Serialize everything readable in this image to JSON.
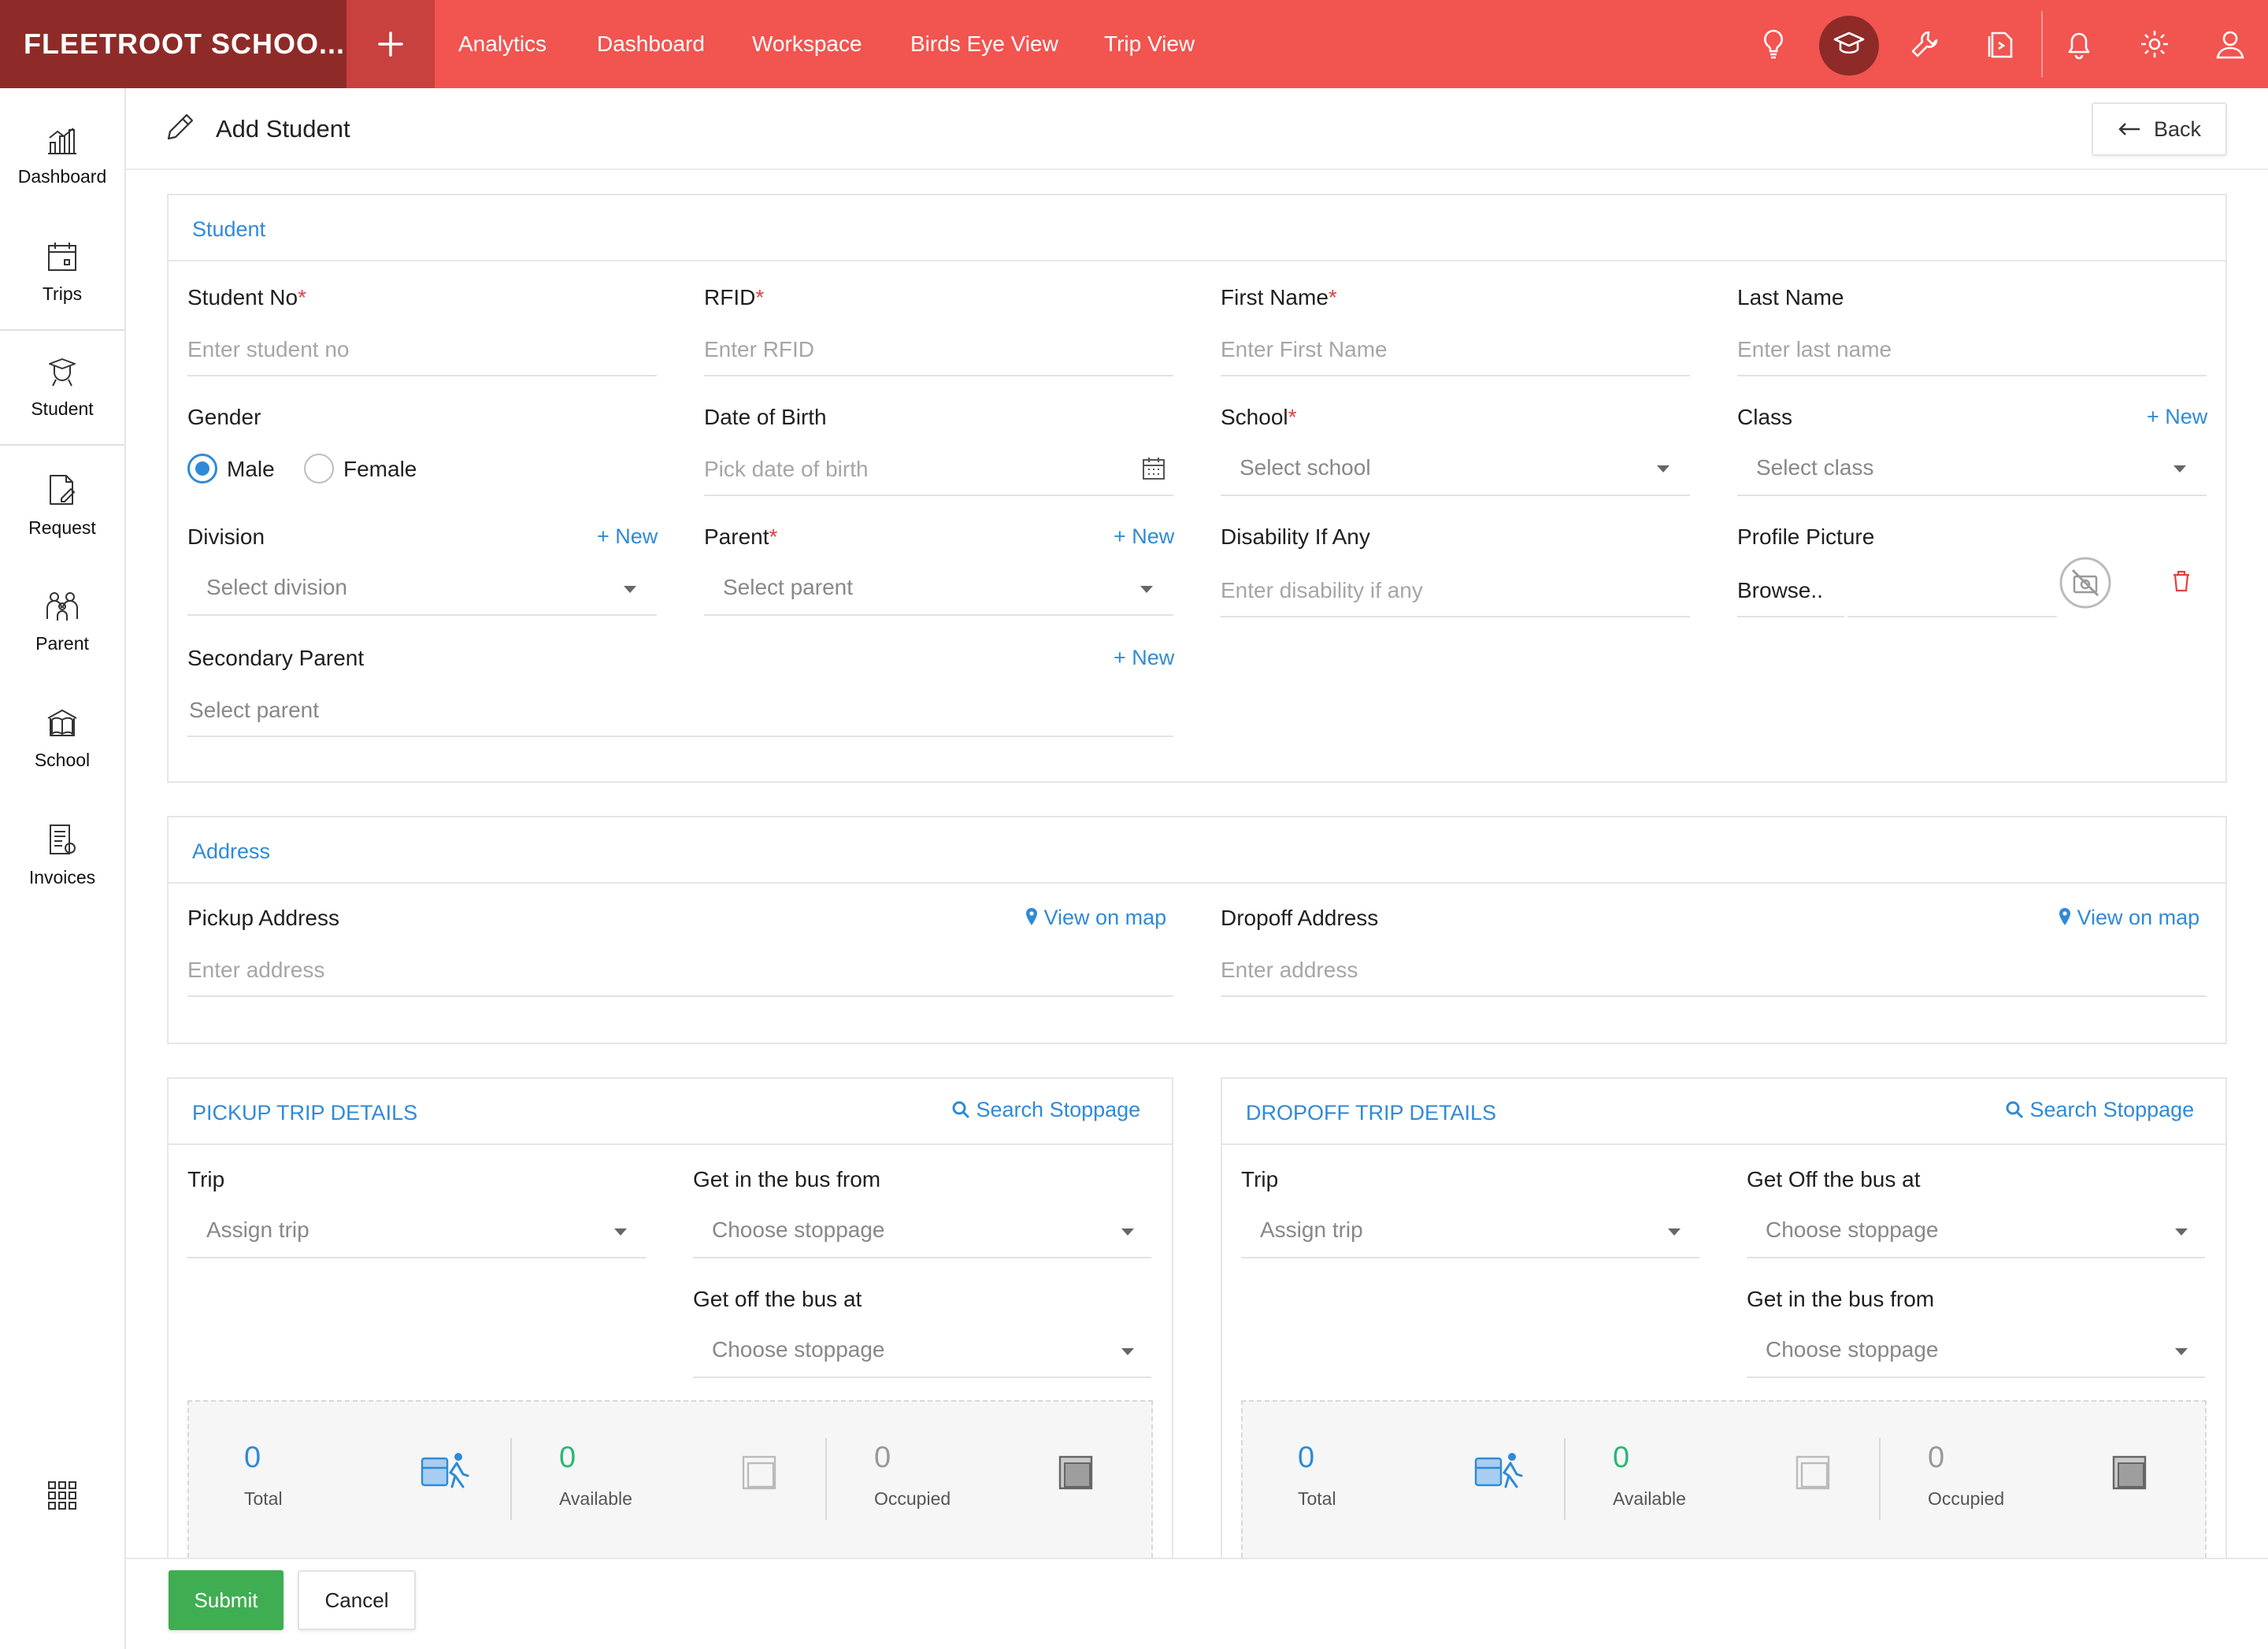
{
  "app": {
    "brand": "FLEETROOT SCHOO..."
  },
  "topnav": {
    "items": [
      "Analytics",
      "Dashboard",
      "Workspace",
      "Birds Eye View",
      "Trip View"
    ]
  },
  "top_icons": [
    "bulb-icon",
    "graduation-cap-icon",
    "wrench-icon",
    "documents-icon",
    "bell-icon",
    "gear-icon",
    "user-icon"
  ],
  "sidebar": {
    "items": [
      {
        "label": "Dashboard",
        "icon": "chart-icon"
      },
      {
        "label": "Trips",
        "icon": "calendar-icon"
      },
      {
        "label": "Student",
        "icon": "student-icon"
      },
      {
        "label": "Request",
        "icon": "request-icon"
      },
      {
        "label": "Parent",
        "icon": "parent-icon"
      },
      {
        "label": "School",
        "icon": "school-icon"
      },
      {
        "label": "Invoices",
        "icon": "invoice-icon"
      }
    ],
    "active": "Student"
  },
  "header": {
    "title": "Add Student",
    "back_label": "Back"
  },
  "student": {
    "section_title": "Student",
    "student_no": {
      "label": "Student No",
      "placeholder": "Enter student no"
    },
    "rfid": {
      "label": "RFID",
      "placeholder": "Enter RFID"
    },
    "first_name": {
      "label": "First Name",
      "placeholder": "Enter First Name"
    },
    "last_name": {
      "label": "Last Name",
      "placeholder": "Enter last name"
    },
    "gender": {
      "label": "Gender",
      "options": [
        "Male",
        "Female"
      ],
      "selected": "Male"
    },
    "dob": {
      "label": "Date of Birth",
      "placeholder": "Pick date of birth"
    },
    "school": {
      "label": "School",
      "placeholder": "Select school"
    },
    "class": {
      "label": "Class",
      "placeholder": "Select class",
      "new_label": "+ New"
    },
    "division": {
      "label": "Division",
      "placeholder": "Select division",
      "new_label": "+ New"
    },
    "parent": {
      "label": "Parent",
      "placeholder": "Select parent",
      "new_label": "+ New"
    },
    "disability": {
      "label": "Disability If Any",
      "placeholder": "Enter disability if any"
    },
    "profile_picture": {
      "label": "Profile Picture",
      "browse_label": "Browse.."
    },
    "secondary_parent": {
      "label": "Secondary Parent",
      "placeholder": "Select parent",
      "new_label": "+ New"
    },
    "required_mark": "*"
  },
  "address": {
    "section_title": "Address",
    "pickup": {
      "label": "Pickup Address",
      "placeholder": "Enter address",
      "map_label": "View on map"
    },
    "dropoff": {
      "label": "Dropoff Address",
      "placeholder": "Enter address",
      "map_label": "View on map"
    }
  },
  "pickup_trip": {
    "section_title": "PICKUP TRIP DETAILS",
    "search_label": "Search Stoppage",
    "trip": {
      "label": "Trip",
      "placeholder": "Assign trip"
    },
    "get_in": {
      "label": "Get in the bus from",
      "placeholder": "Choose stoppage"
    },
    "get_off": {
      "label": "Get off the bus at",
      "placeholder": "Choose stoppage"
    },
    "stats": {
      "total": "0",
      "total_label": "Total",
      "available": "0",
      "available_label": "Available",
      "occupied": "0",
      "occupied_label": "Occupied"
    }
  },
  "dropoff_trip": {
    "section_title": "DROPOFF TRIP DETAILS",
    "search_label": "Search Stoppage",
    "trip": {
      "label": "Trip",
      "placeholder": "Assign trip"
    },
    "get_off": {
      "label": "Get Off the bus at",
      "placeholder": "Choose stoppage"
    },
    "get_in": {
      "label": "Get in the bus from",
      "placeholder": "Choose stoppage"
    },
    "stats": {
      "total": "0",
      "total_label": "Total",
      "available": "0",
      "available_label": "Available",
      "occupied": "0",
      "occupied_label": "Occupied"
    }
  },
  "footer": {
    "submit_label": "Submit",
    "cancel_label": "Cancel"
  },
  "colors": {
    "topbar": "#f25450",
    "brand_bg": "#8e2b28",
    "accent": "#2f8ad8",
    "submit": "#3fae52",
    "required": "#e0413d"
  }
}
